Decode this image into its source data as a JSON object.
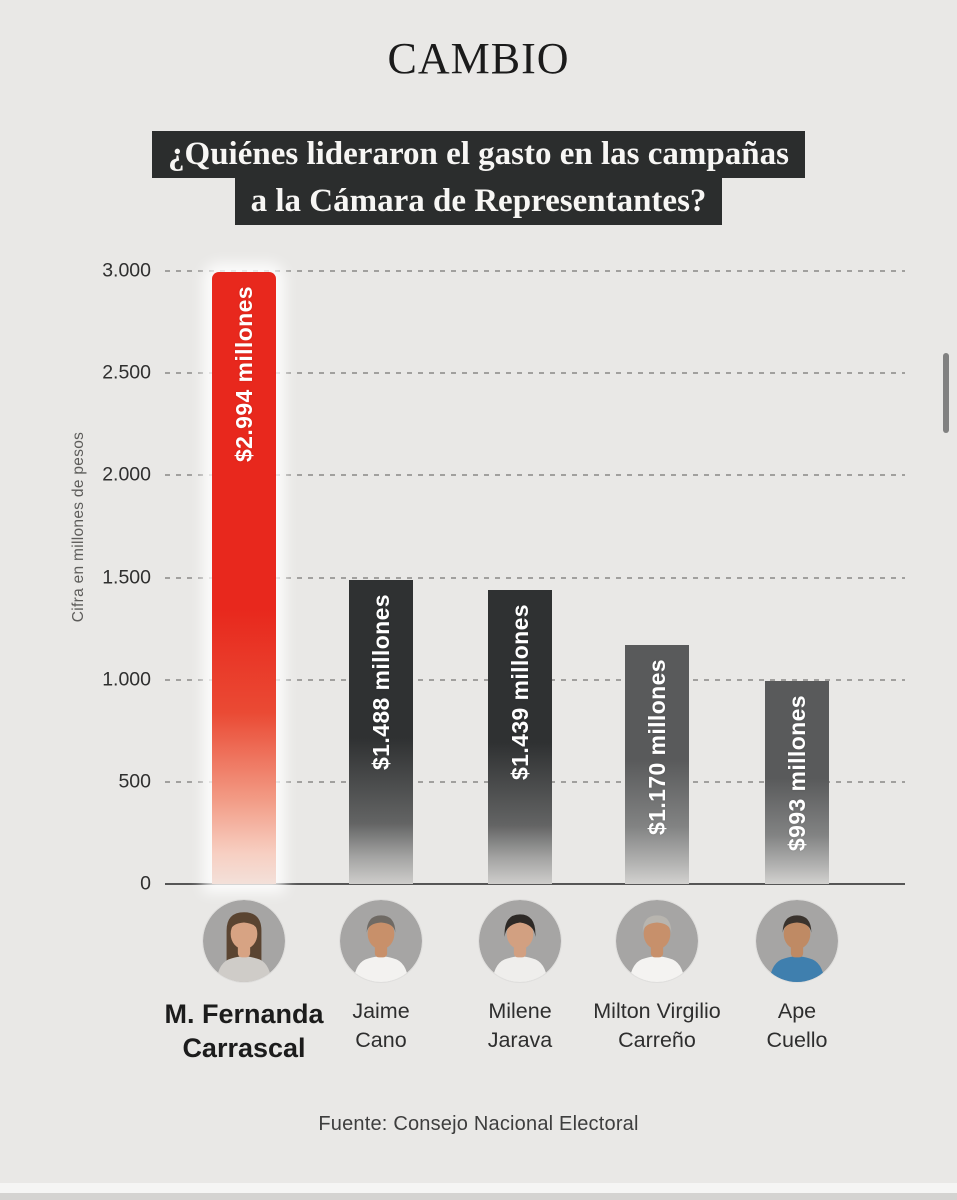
{
  "brand": {
    "logo": "CAMBIO"
  },
  "title": {
    "line1": "¿Quiénes lideraron el gasto en las campañas",
    "line2": "a la Cámara de Representantes?"
  },
  "chart_data": {
    "type": "bar",
    "title": "¿Quiénes lideraron el gasto en las campañas a la Cámara de Representantes?",
    "categories": [
      "M. Fernanda Carrascal",
      "Jaime Cano",
      "Milene Jarava",
      "Milton Virgilio Carreño",
      "Ape Cuello"
    ],
    "values": [
      2994,
      1488,
      1439,
      1170,
      993
    ],
    "bar_labels": [
      "$2.994 millones",
      "$1.488 millones",
      "$1.439 millones",
      "$1.170 millones",
      "$993 millones"
    ],
    "xlabel": "",
    "ylabel": "Cifra en millones de pesos",
    "ylim": [
      0,
      3000
    ],
    "yticks": [
      0,
      500,
      1000,
      1500,
      2000,
      2500,
      3000
    ],
    "ytick_labels": [
      "0",
      "500",
      "1.000",
      "1.500",
      "2.000",
      "2.500",
      "3.000"
    ],
    "grid": "horizontal-dashed",
    "legend": "none",
    "bar_shades": [
      "highlight",
      "shade-dark",
      "shade-dark",
      "shade-gray",
      "shade-gray"
    ]
  },
  "candidates": [
    {
      "name_line1": "M. Fernanda",
      "name_line2": "Carrascal",
      "value": 2994,
      "value_label": "$2.994 millones",
      "lead": true,
      "avatar": {
        "style": "long-hair",
        "hair": "#5a4431",
        "skin": "#d7a383",
        "shirt": "#cfccc8"
      }
    },
    {
      "name_line1": "Jaime",
      "name_line2": "Cano",
      "value": 1488,
      "value_label": "$1.488 millones",
      "lead": false,
      "avatar": {
        "style": "short-hair",
        "hair": "#6f6a64",
        "skin": "#c8906a",
        "shirt": "#f3f2f0"
      }
    },
    {
      "name_line1": "Milene",
      "name_line2": "Jarava",
      "value": 1439,
      "value_label": "$1.439 millones",
      "lead": false,
      "avatar": {
        "style": "pulled-back-hair",
        "hair": "#2d2926",
        "skin": "#d2a081",
        "shirt": "#efeeec"
      }
    },
    {
      "name_line1": "Milton Virgilio",
      "name_line2": "Carreño",
      "value": 1170,
      "value_label": "$1.170 millones",
      "lead": false,
      "avatar": {
        "style": "short-hair",
        "hair": "#b8b5af",
        "skin": "#c7906b",
        "shirt": "#f4f3f1"
      }
    },
    {
      "name_line1": "Ape",
      "name_line2": "Cuello",
      "value": 993,
      "value_label": "$993 millones",
      "lead": false,
      "avatar": {
        "style": "short-hair",
        "hair": "#3a332d",
        "skin": "#bf8a64",
        "shirt": "#3f7fae"
      }
    }
  ],
  "source": "Fuente: Consejo Nacional Electoral",
  "colors": {
    "background": "#e9e8e6",
    "title_bg": "#2b2d2d",
    "title_text": "#f7f6f4",
    "accent_red": "#e8281d",
    "bar_dark": "#2f3132",
    "bar_gray": "#595a5b",
    "grid": "#a1a09e",
    "axis_text": "#2f2f2f"
  }
}
